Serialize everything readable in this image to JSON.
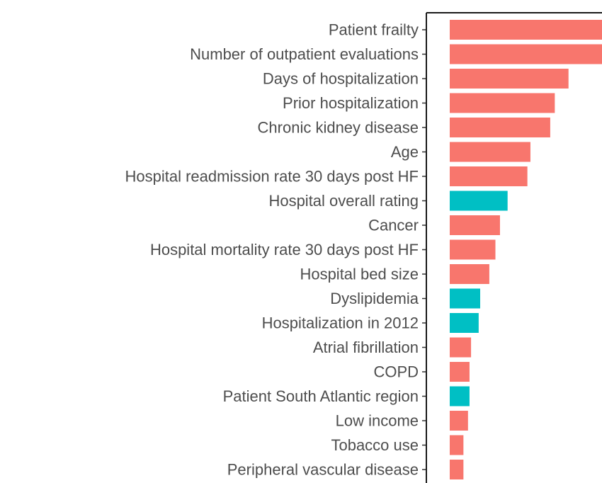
{
  "chart_data": {
    "type": "bar",
    "orientation": "horizontal",
    "title": "",
    "xlabel": "",
    "ylabel": "",
    "grid": false,
    "legend": "none",
    "xlim": [
      0,
      100
    ],
    "colors": {
      "positive": "#F8766D",
      "negative": "#00BFC4"
    },
    "categories": [
      "Patient frailty",
      "Number of outpatient evaluations",
      "Days of hospitalization",
      "Prior hospitalization",
      "Chronic kidney disease",
      "Age",
      "Hospital readmission rate 30 days post HF",
      "Hospital overall rating",
      "Cancer",
      "Hospital mortality rate 30 days post HF",
      "Hospital bed size",
      "Dyslipidemia",
      "Hospitalization in 2012",
      "Atrial fibrillation",
      "COPD",
      "Patient South Atlantic region",
      "Low income",
      "Tobacco use",
      "Peripheral vascular disease"
    ],
    "values": [
      100,
      100,
      78,
      69,
      66,
      53,
      51,
      38,
      33,
      30,
      26,
      20,
      19,
      14,
      13,
      13,
      12,
      9,
      9
    ],
    "groups": [
      "positive",
      "positive",
      "positive",
      "positive",
      "positive",
      "positive",
      "positive",
      "negative",
      "positive",
      "positive",
      "positive",
      "negative",
      "negative",
      "positive",
      "positive",
      "negative",
      "positive",
      "positive",
      "positive"
    ]
  }
}
